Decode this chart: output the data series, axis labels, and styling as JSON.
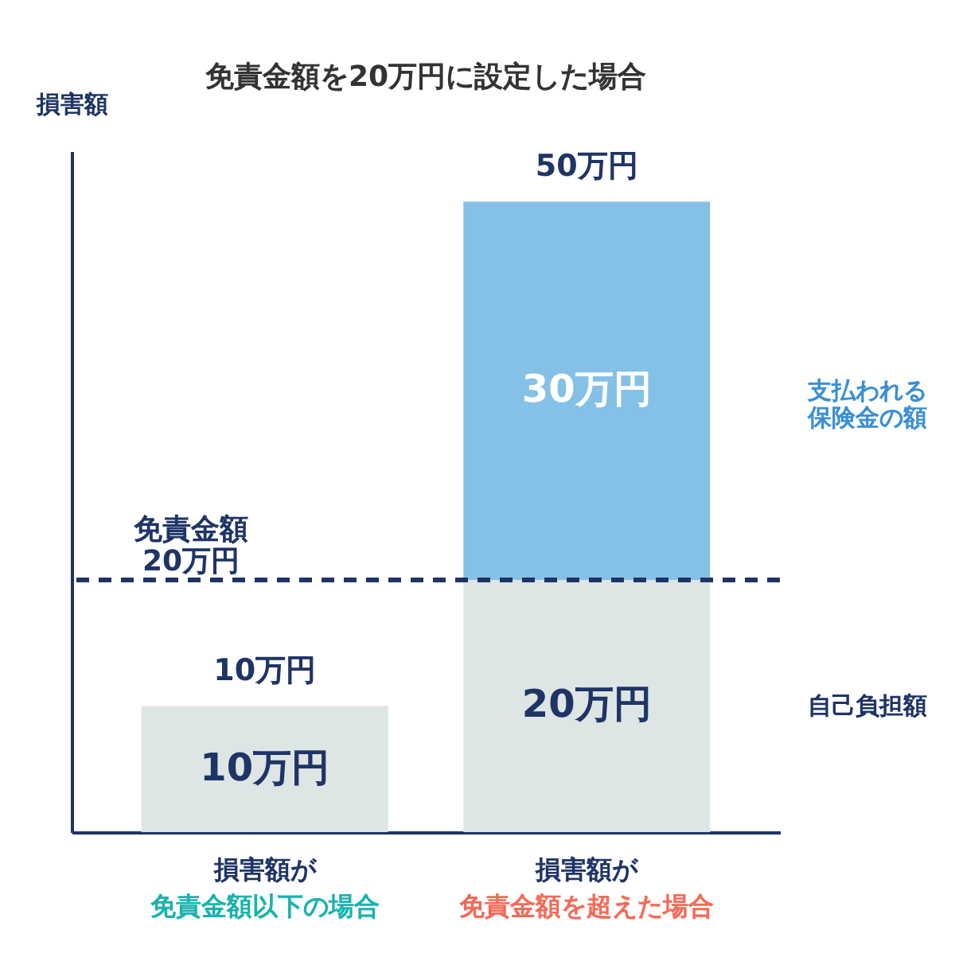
{
  "chart_data": {
    "type": "bar",
    "title": "免責金額を20万円に設定した場合",
    "ylabel": "損害額",
    "categories": [
      "損害額が免責金額以下の場合",
      "損害額が免責金額を超えた場合"
    ],
    "stacked": true,
    "ylim": [
      0,
      54
    ],
    "tick_labels": "x",
    "series": [
      {
        "name": "自己負担額",
        "color": "#dde5e5",
        "values": [
          10,
          20
        ],
        "value_labels": [
          "10万円",
          "20万円"
        ]
      },
      {
        "name": "支払われる保険金の額",
        "color": "#85c1e6",
        "values": [
          null,
          30
        ],
        "value_labels": [
          null,
          "30万円"
        ]
      }
    ],
    "totals": [
      "10万円",
      "50万円"
    ],
    "ref_lines": [
      {
        "axis": "y",
        "value": 20,
        "label": "免責金額\n20万円",
        "color": "#1f3466",
        "line_style": "dashed"
      }
    ]
  }
}
